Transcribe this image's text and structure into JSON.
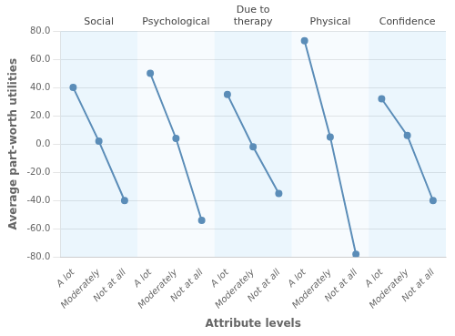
{
  "chart_data": {
    "type": "line",
    "xlabel": "Attribute levels",
    "ylabel": "Average part-worth utilities",
    "categories": [
      "A lot",
      "Moderately",
      "Not at all",
      "A lot",
      "Moderately",
      "Not at all",
      "A lot",
      "Moderately",
      "Not at all",
      "A lot",
      "Moderately",
      "Not at all",
      "A lot",
      "Moderately",
      "Not at all"
    ],
    "series": [
      {
        "name": "Social",
        "color": "#5b8db8",
        "values": [
          40.0,
          2.0,
          -40.0,
          null,
          null,
          null,
          null,
          null,
          null,
          null,
          null,
          null,
          null,
          null,
          null
        ]
      },
      {
        "name": "Psychological",
        "color": "#5b8db8",
        "values": [
          null,
          null,
          null,
          50.0,
          4.0,
          -54.0,
          null,
          null,
          null,
          null,
          null,
          null,
          null,
          null,
          null
        ]
      },
      {
        "name": "Due to\ntherapy",
        "color": "#5b8db8",
        "values": [
          null,
          null,
          null,
          null,
          null,
          null,
          35.0,
          -2.0,
          -35.0,
          null,
          null,
          null,
          null,
          null,
          null
        ]
      },
      {
        "name": "Physical",
        "color": "#5b8db8",
        "values": [
          null,
          null,
          null,
          null,
          null,
          null,
          null,
          null,
          null,
          73.0,
          5.0,
          -78.0,
          null,
          null,
          null
        ]
      },
      {
        "name": "Confidence",
        "color": "#5b8db8",
        "values": [
          null,
          null,
          null,
          null,
          null,
          null,
          null,
          null,
          null,
          null,
          null,
          null,
          32.0,
          6.0,
          -40.0
        ]
      }
    ],
    "ylim": [
      -80.0,
      80.0
    ],
    "yticks": [
      {
        "value": -80,
        "label": "-80.0"
      },
      {
        "value": -60,
        "label": "-60.0"
      },
      {
        "value": -40,
        "label": "-40.0"
      },
      {
        "value": -20,
        "label": "-20.0"
      },
      {
        "value": 0,
        "label": "0.0"
      },
      {
        "value": 20,
        "label": "20.0"
      },
      {
        "value": 40,
        "label": "40.0"
      },
      {
        "value": 60,
        "label": "60.0"
      },
      {
        "value": 80,
        "label": "80.0"
      }
    ],
    "grid": true
  }
}
